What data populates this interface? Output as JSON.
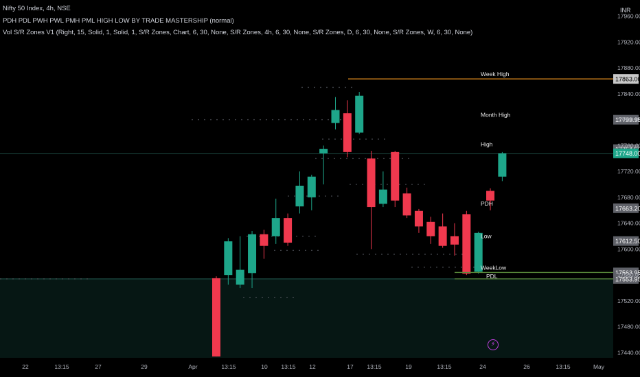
{
  "legend": {
    "symbol": "Nifty 50 Index, 4h, NSE",
    "indicator1": "PDH PDL PWH PWL PMH PML HIGH LOW BY TRADE MASTERSHIP (normal)",
    "indicator2": "Vol S/R Zones V1 (Right, 15, Solid, 1, Solid, 1, S/R Zones, Chart, 6, 30, None, S/R Zones, 4h, 6, 30, None, S/R Zones, D, 6, 30, None, S/R Zones, W, 6, 30, None)"
  },
  "currency": "INR",
  "alert_icon": "lightning-icon",
  "colors": {
    "up": "#1ea68a",
    "down": "#f0394e",
    "week_high": "#e08a1e",
    "zone_line": "#1c4a42",
    "zone_fill": "#061714",
    "low_lines": "#5a8a3a",
    "dots": "#5a5d66"
  },
  "chart_data": {
    "type": "candlestick",
    "timeframe": "4h",
    "ylim": [
      17432,
      17985
    ],
    "y_ticks": [
      17440,
      17480,
      17520,
      17560,
      17600,
      17640,
      17680,
      17720,
      17760,
      17800,
      17840,
      17880,
      17920,
      17960
    ],
    "x_ticks": [
      "22",
      "13:15",
      "27",
      "29",
      "Apr",
      "13:15",
      "10",
      "13:15",
      "12",
      "17",
      "13:15",
      "19",
      "13:15",
      "24",
      "26",
      "13:15",
      "May"
    ],
    "candles": [
      {
        "o": 17555,
        "h": 17558,
        "l": 17434,
        "c": 17434
      },
      {
        "o": 17560,
        "h": 17617,
        "l": 17545,
        "c": 17612
      },
      {
        "o": 17545,
        "h": 17620,
        "l": 17540,
        "c": 17568
      },
      {
        "o": 17563,
        "h": 17628,
        "l": 17540,
        "c": 17623
      },
      {
        "o": 17623,
        "h": 17630,
        "l": 17585,
        "c": 17605
      },
      {
        "o": 17620,
        "h": 17678,
        "l": 17608,
        "c": 17648
      },
      {
        "o": 17648,
        "h": 17655,
        "l": 17605,
        "c": 17610
      },
      {
        "o": 17666,
        "h": 17720,
        "l": 17655,
        "c": 17698
      },
      {
        "o": 17680,
        "h": 17715,
        "l": 17660,
        "c": 17712
      },
      {
        "o": 17748,
        "h": 17760,
        "l": 17700,
        "c": 17755
      },
      {
        "o": 17795,
        "h": 17835,
        "l": 17785,
        "c": 17815
      },
      {
        "o": 17810,
        "h": 17830,
        "l": 17742,
        "c": 17750
      },
      {
        "o": 17780,
        "h": 17843,
        "l": 17778,
        "c": 17837
      },
      {
        "o": 17740,
        "h": 17752,
        "l": 17600,
        "c": 17665
      },
      {
        "o": 17670,
        "h": 17720,
        "l": 17665,
        "c": 17692
      },
      {
        "o": 17750,
        "h": 17752,
        "l": 17665,
        "c": 17675
      },
      {
        "o": 17686,
        "h": 17695,
        "l": 17648,
        "c": 17652
      },
      {
        "o": 17659,
        "h": 17662,
        "l": 17625,
        "c": 17635
      },
      {
        "o": 17642,
        "h": 17650,
        "l": 17608,
        "c": 17620
      },
      {
        "o": 17635,
        "h": 17655,
        "l": 17602,
        "c": 17605
      },
      {
        "o": 17620,
        "h": 17640,
        "l": 17590,
        "c": 17607
      },
      {
        "o": 17654,
        "h": 17659,
        "l": 17560,
        "c": 17562
      },
      {
        "o": 17565,
        "h": 17627,
        "l": 17562,
        "c": 17625
      },
      {
        "o": 17690,
        "h": 17694,
        "l": 17660,
        "c": 17675
      },
      {
        "o": 17712,
        "h": 17750,
        "l": 17705,
        "c": 17748
      }
    ],
    "levels": [
      {
        "label": "Week High",
        "value": 17863.0,
        "price_tag": "17863.00",
        "color": "#e08a1e"
      },
      {
        "label": "Month High",
        "value": 17799.95,
        "price_tag": "17799.95",
        "color": "#8a8a8a"
      },
      {
        "label": "High",
        "value": 17754.5,
        "price_tag": "17754.50",
        "color": "#8a8a8a"
      },
      {
        "label": "PDH",
        "value": 17663.2,
        "price_tag": "17663.20",
        "color": "#8a8a8a"
      },
      {
        "label": "Low",
        "value": 17612.5,
        "price_tag": "17612.50",
        "color": "#8a8a8a"
      },
      {
        "label": "WeekLow",
        "value": 17563.95,
        "price_tag": "17563.95",
        "color": "#5a8a3a"
      },
      {
        "label": "PDL",
        "value": 17553.95,
        "price_tag": "17553.95",
        "color": "#5a8a3a"
      }
    ],
    "last_price": {
      "value": 17748.0,
      "price_tag": "17748.00"
    },
    "sr_zone": {
      "from": 17432,
      "to": 17553.95
    }
  }
}
